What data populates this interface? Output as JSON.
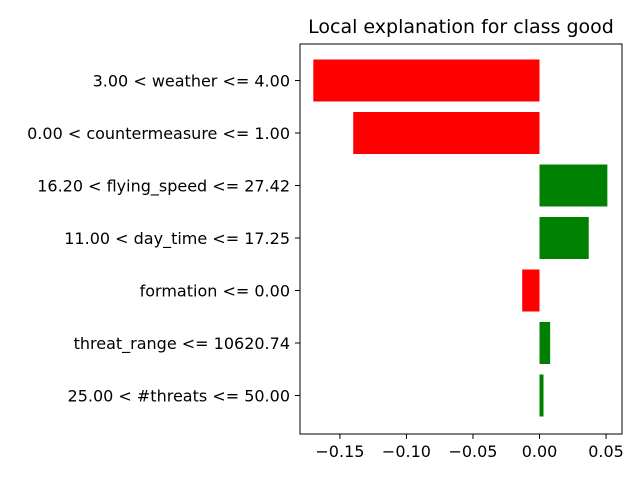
{
  "chart_data": {
    "type": "bar",
    "orientation": "horizontal",
    "title": "Local explanation for class good",
    "xlabel": "",
    "ylabel": "",
    "categories": [
      "3.00 < weather <= 4.00",
      "0.00 < countermeasure <= 1.00",
      "16.20 < flying_speed <= 27.42",
      "11.00 < day_time <= 17.25",
      "formation <= 0.00",
      "threat_range <= 10620.74",
      "25.00 < #threats <= 50.00"
    ],
    "values": [
      -0.17,
      -0.14,
      0.051,
      0.037,
      -0.013,
      0.008,
      0.003
    ],
    "xlim": [
      -0.18,
      0.062
    ],
    "xticks": [
      -0.15,
      -0.1,
      -0.05,
      0.0,
      0.05
    ],
    "xtick_labels": [
      "−0.15",
      "−0.10",
      "−0.05",
      "0.00",
      "0.05"
    ],
    "grid": false,
    "colors": {
      "positive": "#008000",
      "negative": "#ff0000"
    }
  }
}
